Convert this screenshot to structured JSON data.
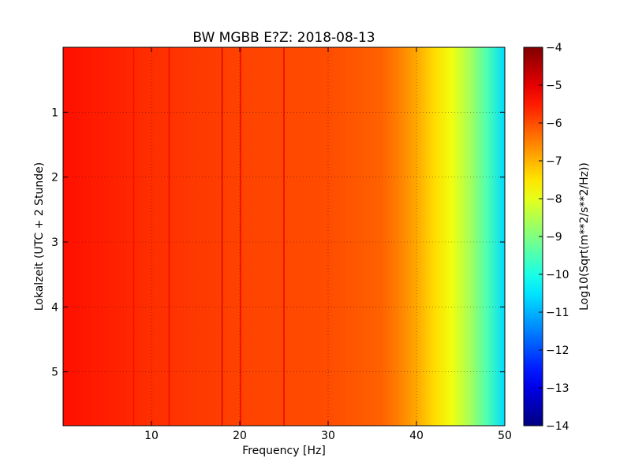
{
  "chart_data": {
    "type": "heatmap",
    "title": "BW MGBB E?Z: 2018-08-13",
    "xlabel": "Frequency [Hz]",
    "ylabel": "Lokalzeit (UTC + 2 Stunde)",
    "xlim": [
      0,
      50
    ],
    "ylim": [
      0,
      5.83
    ],
    "y_inverted": true,
    "x_ticks": [
      10,
      20,
      30,
      40,
      50
    ],
    "x_tick_labels": [
      "10",
      "20",
      "30",
      "40",
      "50"
    ],
    "y_ticks": [
      1,
      2,
      3,
      4,
      5
    ],
    "y_tick_labels": [
      "1",
      "2",
      "3",
      "4",
      "5"
    ],
    "grid": true,
    "colormap": "jet",
    "colorbar": {
      "label": "Log10(Sqrt(m**2/s**2/Hz))",
      "range": [
        -14,
        -4
      ],
      "ticks": [
        -4,
        -5,
        -6,
        -7,
        -8,
        -9,
        -10,
        -11,
        -12,
        -13,
        -14
      ],
      "tick_labels": [
        "−4",
        "−5",
        "−6",
        "−7",
        "−8",
        "−9",
        "−10",
        "−11",
        "−12",
        "−13",
        "−14"
      ]
    },
    "level_profile": {
      "frequency_hz": [
        0,
        10,
        20,
        30,
        36,
        38,
        40,
        42,
        44,
        46,
        48,
        50
      ],
      "log10_value": [
        -5.4,
        -5.7,
        -5.9,
        -6.0,
        -6.2,
        -6.5,
        -6.9,
        -7.4,
        -7.9,
        -8.6,
        -9.5,
        -10.6
      ]
    },
    "line_features_hz": [
      {
        "frequency_hz": 8,
        "log10_value": -5.3
      },
      {
        "frequency_hz": 12,
        "log10_value": -5.2
      },
      {
        "frequency_hz": 18,
        "log10_value": -4.8
      },
      {
        "frequency_hz": 20.1,
        "log10_value": -5.1
      },
      {
        "frequency_hz": 25,
        "log10_value": -5.0
      }
    ]
  }
}
